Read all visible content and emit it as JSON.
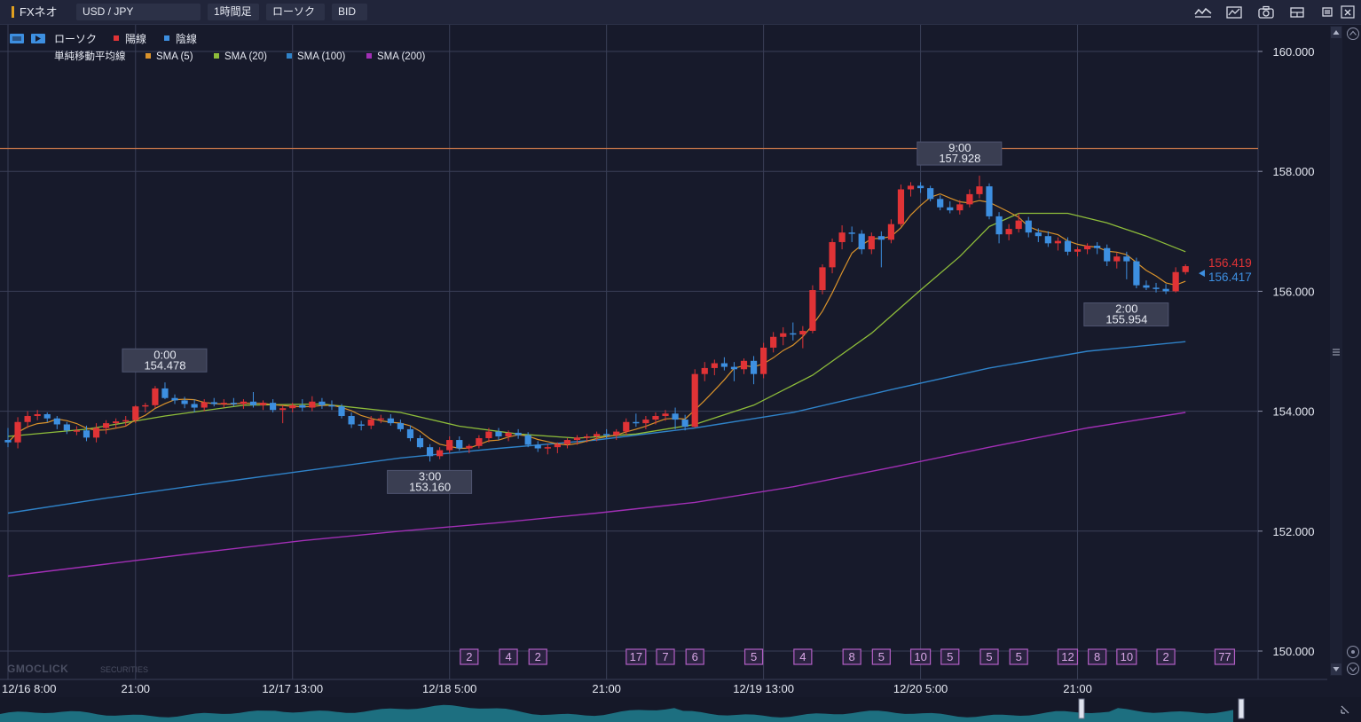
{
  "toolbar": {
    "app_name": "FXネオ",
    "symbol": "USD / JPY",
    "timeframe": "1時間足",
    "chart_type": "ローソク",
    "price_type": "BID",
    "icons": [
      "indicator-icon",
      "draw-tool-icon",
      "camera-icon",
      "layout-icon",
      "restore-window-icon",
      "close-window-icon"
    ]
  },
  "legend": {
    "row1": {
      "chart_label": "ローソク",
      "up_label": "陽線",
      "down_label": "陰線"
    },
    "row2": {
      "ma_label": "単純移動平均線",
      "sma5": "SMA (5)",
      "sma20": "SMA (20)",
      "sma100": "SMA (100)",
      "sma200": "SMA (200)"
    }
  },
  "colors": {
    "background": "#171a2b",
    "grid": "#3a3f57",
    "up": "#e03336",
    "down": "#3d8fe0",
    "sma5": "#d9922b",
    "sma20": "#8ebd3a",
    "sma100": "#2f82c8",
    "sma200": "#a12fb5",
    "hline": "#c8764a",
    "event_border": "#b25fc5",
    "event_text": "#d9a7e6"
  },
  "chart_data": {
    "type": "candlestick",
    "symbol": "USD / JPY",
    "ylim": [
      149.6,
      160.5
    ],
    "yticks": [
      "160.000",
      "158.000",
      "156.000",
      "154.000",
      "152.000",
      "150.000"
    ],
    "ytick_values": [
      160,
      158,
      156,
      154,
      152,
      150
    ],
    "xticks": [
      "12/16 8:00",
      "21:00",
      "12/17 13:00",
      "12/18 5:00",
      "21:00",
      "12/19 13:00",
      "12/20 5:00",
      "21:00"
    ],
    "xtick_candle_index": [
      0,
      13,
      29,
      45,
      61,
      77,
      93,
      109
    ],
    "grid": true,
    "horizontal_line": 158.38,
    "last_price_bid": "156.419",
    "last_price_alt": "156.417",
    "high_low_labels": [
      {
        "time": "0:00",
        "price": "154.478",
        "candle": 16,
        "type": "high"
      },
      {
        "time": "3:00",
        "price": "153.160",
        "candle": 43,
        "type": "low"
      },
      {
        "time": "9:00",
        "price": "157.928",
        "candle": 97,
        "type": "high"
      },
      {
        "time": "2:00",
        "price": "155.954",
        "candle": 114,
        "type": "low"
      }
    ],
    "candles": [
      [
        153.52,
        153.72,
        153.4,
        153.48
      ],
      [
        153.48,
        153.9,
        153.38,
        153.82
      ],
      [
        153.82,
        154.0,
        153.72,
        153.92
      ],
      [
        153.92,
        154.02,
        153.85,
        153.95
      ],
      [
        153.95,
        153.98,
        153.82,
        153.88
      ],
      [
        153.88,
        153.92,
        153.7,
        153.78
      ],
      [
        153.78,
        153.82,
        153.62,
        153.68
      ],
      [
        153.68,
        153.75,
        153.6,
        153.68
      ],
      [
        153.68,
        153.76,
        153.5,
        153.56
      ],
      [
        153.56,
        153.8,
        153.48,
        153.72
      ],
      [
        153.72,
        153.85,
        153.62,
        153.8
      ],
      [
        153.8,
        153.88,
        153.72,
        153.83
      ],
      [
        153.83,
        153.92,
        153.75,
        153.85
      ],
      [
        153.85,
        154.1,
        153.8,
        154.08
      ],
      [
        154.08,
        154.14,
        153.98,
        154.1
      ],
      [
        154.1,
        154.42,
        154.05,
        154.38
      ],
      [
        154.38,
        154.48,
        154.2,
        154.22
      ],
      [
        154.22,
        154.28,
        154.12,
        154.18
      ],
      [
        154.18,
        154.24,
        154.05,
        154.12
      ],
      [
        154.12,
        154.2,
        153.98,
        154.06
      ],
      [
        154.06,
        154.2,
        154.0,
        154.15
      ],
      [
        154.15,
        154.22,
        154.08,
        154.12
      ],
      [
        154.12,
        154.2,
        154.06,
        154.14
      ],
      [
        154.14,
        154.22,
        154.08,
        154.12
      ],
      [
        154.12,
        154.2,
        154.04,
        154.16
      ],
      [
        154.16,
        154.32,
        154.06,
        154.1
      ],
      [
        154.1,
        154.18,
        154.02,
        154.14
      ],
      [
        154.14,
        154.2,
        153.98,
        154.02
      ],
      [
        154.02,
        154.1,
        153.8,
        154.05
      ],
      [
        154.05,
        154.14,
        153.98,
        154.1
      ],
      [
        154.1,
        154.2,
        154.0,
        154.06
      ],
      [
        154.06,
        154.25,
        154.0,
        154.16
      ],
      [
        154.16,
        154.22,
        154.04,
        154.1
      ],
      [
        154.1,
        154.18,
        154.02,
        154.08
      ],
      [
        154.08,
        154.12,
        153.88,
        153.92
      ],
      [
        153.92,
        153.98,
        153.72,
        153.78
      ],
      [
        153.78,
        153.84,
        153.68,
        153.76
      ],
      [
        153.76,
        153.92,
        153.7,
        153.86
      ],
      [
        153.86,
        153.94,
        153.8,
        153.88
      ],
      [
        153.88,
        153.95,
        153.76,
        153.8
      ],
      [
        153.8,
        153.86,
        153.66,
        153.7
      ],
      [
        153.7,
        153.76,
        153.5,
        153.55
      ],
      [
        153.55,
        153.6,
        153.38,
        153.4
      ],
      [
        153.4,
        153.45,
        153.16,
        153.25
      ],
      [
        153.25,
        153.4,
        153.2,
        153.35
      ],
      [
        153.35,
        153.58,
        153.3,
        153.52
      ],
      [
        153.52,
        153.58,
        153.34,
        153.38
      ],
      [
        153.38,
        153.45,
        153.3,
        153.42
      ],
      [
        153.42,
        153.6,
        153.38,
        153.55
      ],
      [
        153.55,
        153.72,
        153.48,
        153.66
      ],
      [
        153.66,
        153.72,
        153.52,
        153.58
      ],
      [
        153.58,
        153.68,
        153.5,
        153.64
      ],
      [
        153.64,
        153.7,
        153.54,
        153.6
      ],
      [
        153.6,
        153.65,
        153.4,
        153.44
      ],
      [
        153.44,
        153.5,
        153.32,
        153.38
      ],
      [
        153.38,
        153.45,
        153.28,
        153.4
      ],
      [
        153.4,
        153.48,
        153.3,
        153.45
      ],
      [
        153.45,
        153.55,
        153.38,
        153.52
      ],
      [
        153.52,
        153.6,
        153.44,
        153.56
      ],
      [
        153.56,
        153.62,
        153.48,
        153.58
      ],
      [
        153.58,
        153.66,
        153.5,
        153.62
      ],
      [
        153.62,
        153.7,
        153.55,
        153.6
      ],
      [
        153.6,
        153.7,
        153.52,
        153.66
      ],
      [
        153.66,
        153.88,
        153.6,
        153.82
      ],
      [
        153.82,
        153.96,
        153.74,
        153.8
      ],
      [
        153.8,
        153.92,
        153.7,
        153.86
      ],
      [
        153.86,
        153.98,
        153.78,
        153.92
      ],
      [
        153.92,
        154.02,
        153.84,
        153.96
      ],
      [
        153.96,
        154.06,
        153.7,
        153.86
      ],
      [
        153.86,
        153.94,
        153.68,
        153.74
      ],
      [
        153.74,
        154.7,
        153.72,
        154.62
      ],
      [
        154.62,
        154.82,
        154.5,
        154.72
      ],
      [
        154.72,
        154.86,
        154.6,
        154.8
      ],
      [
        154.8,
        154.9,
        154.68,
        154.74
      ],
      [
        154.74,
        154.82,
        154.5,
        154.7
      ],
      [
        154.7,
        154.88,
        154.62,
        154.84
      ],
      [
        154.84,
        154.92,
        154.45,
        154.62
      ],
      [
        154.62,
        155.14,
        154.55,
        155.06
      ],
      [
        155.06,
        155.32,
        154.98,
        155.24
      ],
      [
        155.24,
        155.4,
        155.1,
        155.3
      ],
      [
        155.3,
        155.48,
        155.18,
        155.28
      ],
      [
        155.28,
        155.42,
        155.05,
        155.34
      ],
      [
        155.34,
        156.1,
        155.3,
        156.02
      ],
      [
        156.02,
        156.45,
        155.95,
        156.4
      ],
      [
        156.4,
        156.88,
        156.3,
        156.82
      ],
      [
        156.82,
        157.1,
        156.7,
        156.98
      ],
      [
        156.98,
        157.08,
        156.82,
        156.96
      ],
      [
        156.96,
        157.02,
        156.62,
        156.7
      ],
      [
        156.7,
        156.98,
        156.62,
        156.92
      ],
      [
        156.92,
        157.0,
        156.4,
        156.86
      ],
      [
        156.86,
        157.2,
        156.8,
        157.12
      ],
      [
        157.12,
        157.78,
        157.08,
        157.7
      ],
      [
        157.7,
        157.82,
        157.58,
        157.76
      ],
      [
        157.76,
        157.82,
        157.64,
        157.72
      ],
      [
        157.72,
        157.76,
        157.5,
        157.54
      ],
      [
        157.54,
        157.6,
        157.35,
        157.4
      ],
      [
        157.4,
        157.5,
        157.3,
        157.35
      ],
      [
        157.35,
        157.52,
        157.28,
        157.45
      ],
      [
        157.45,
        157.7,
        157.4,
        157.62
      ],
      [
        157.62,
        157.928,
        157.55,
        157.75
      ],
      [
        157.75,
        157.8,
        157.2,
        157.25
      ],
      [
        157.25,
        157.32,
        156.8,
        156.95
      ],
      [
        156.95,
        157.12,
        156.85,
        157.04
      ],
      [
        157.04,
        157.3,
        156.98,
        157.18
      ],
      [
        157.18,
        157.24,
        156.9,
        156.98
      ],
      [
        156.98,
        157.05,
        156.82,
        156.92
      ],
      [
        156.92,
        157.0,
        156.74,
        156.8
      ],
      [
        156.8,
        156.9,
        156.68,
        156.84
      ],
      [
        156.84,
        156.9,
        156.6,
        156.66
      ],
      [
        156.66,
        156.74,
        156.58,
        156.7
      ],
      [
        156.7,
        156.8,
        156.62,
        156.76
      ],
      [
        156.76,
        156.82,
        156.62,
        156.72
      ],
      [
        156.72,
        156.78,
        156.42,
        156.5
      ],
      [
        156.5,
        156.64,
        156.38,
        156.58
      ],
      [
        156.58,
        156.66,
        156.2,
        156.5
      ],
      [
        156.5,
        156.56,
        156.05,
        156.1
      ],
      [
        156.1,
        156.18,
        156.02,
        156.06
      ],
      [
        156.06,
        156.14,
        155.98,
        156.04
      ],
      [
        156.04,
        156.12,
        155.954,
        156.0
      ],
      [
        156.0,
        156.4,
        155.98,
        156.32
      ],
      [
        156.32,
        156.45,
        156.28,
        156.419
      ]
    ],
    "sma20_points": [
      [
        0,
        153.58
      ],
      [
        8,
        153.7
      ],
      [
        16,
        153.92
      ],
      [
        24,
        154.1
      ],
      [
        32,
        154.12
      ],
      [
        40,
        153.98
      ],
      [
        46,
        153.75
      ],
      [
        52,
        153.62
      ],
      [
        58,
        153.55
      ],
      [
        64,
        153.62
      ],
      [
        70,
        153.78
      ],
      [
        76,
        154.1
      ],
      [
        82,
        154.6
      ],
      [
        88,
        155.3
      ],
      [
        93,
        156.02
      ],
      [
        97,
        156.58
      ],
      [
        100,
        157.08
      ],
      [
        103,
        157.3
      ],
      [
        108,
        157.3
      ],
      [
        112,
        157.14
      ],
      [
        116,
        156.92
      ],
      [
        120,
        156.66
      ]
    ],
    "sma100_points": [
      [
        0,
        152.3
      ],
      [
        10,
        152.55
      ],
      [
        20,
        152.78
      ],
      [
        30,
        153.0
      ],
      [
        40,
        153.22
      ],
      [
        50,
        153.38
      ],
      [
        60,
        153.52
      ],
      [
        70,
        153.72
      ],
      [
        80,
        153.98
      ],
      [
        90,
        154.36
      ],
      [
        100,
        154.72
      ],
      [
        110,
        155.0
      ],
      [
        120,
        155.16
      ]
    ],
    "sma200_points": [
      [
        0,
        151.25
      ],
      [
        10,
        151.45
      ],
      [
        20,
        151.65
      ],
      [
        30,
        151.84
      ],
      [
        40,
        152.0
      ],
      [
        50,
        152.14
      ],
      [
        60,
        152.3
      ],
      [
        70,
        152.48
      ],
      [
        80,
        152.74
      ],
      [
        90,
        153.06
      ],
      [
        100,
        153.4
      ],
      [
        110,
        153.72
      ],
      [
        120,
        153.98
      ]
    ],
    "event_markers": [
      {
        "label": "2",
        "candle": 47
      },
      {
        "label": "4",
        "candle": 51
      },
      {
        "label": "2",
        "candle": 54
      },
      {
        "label": "17",
        "candle": 64
      },
      {
        "label": "7",
        "candle": 67
      },
      {
        "label": "6",
        "candle": 70
      },
      {
        "label": "5",
        "candle": 76
      },
      {
        "label": "4",
        "candle": 81
      },
      {
        "label": "8",
        "candle": 86
      },
      {
        "label": "5",
        "candle": 89
      },
      {
        "label": "10",
        "candle": 93
      },
      {
        "label": "5",
        "candle": 96
      },
      {
        "label": "5",
        "candle": 100
      },
      {
        "label": "5",
        "candle": 103
      },
      {
        "label": "12",
        "candle": 108
      },
      {
        "label": "8",
        "candle": 111
      },
      {
        "label": "10",
        "candle": 114
      },
      {
        "label": "2",
        "candle": 118
      },
      {
        "label": "77",
        "candle": 124
      }
    ]
  },
  "watermark": {
    "brand": "GMOCLICK",
    "suffix": "SECURITIES"
  }
}
